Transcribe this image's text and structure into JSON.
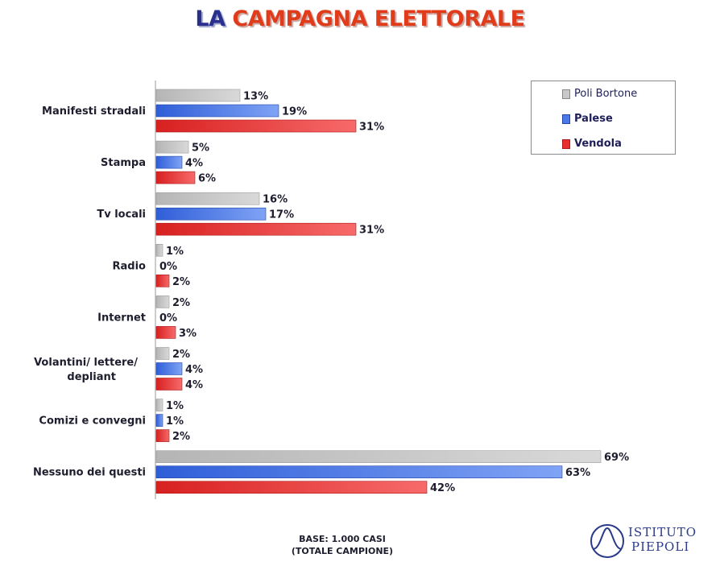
{
  "title": {
    "part1": "LA",
    "part2": "CAMPAGNA ELETTORALE"
  },
  "footer": {
    "line1": "BASE: 1.000 CASI",
    "line2": "(TOTALE CAMPIONE)"
  },
  "logo": {
    "line1": "ISTITUTO",
    "line2": "PIEPOLI"
  },
  "chart_data": {
    "type": "bar",
    "orientation": "horizontal",
    "categories": [
      "Manifesti stradali",
      "Stampa",
      "Tv locali",
      "Radio",
      "Internet",
      "Volantini/ lettere/ depliant",
      "Comizi e convegni",
      "Nessuno dei questi"
    ],
    "series": [
      {
        "name": "Poli Bortone",
        "color": "#c8c8c8",
        "values": [
          13,
          5,
          16,
          1,
          2,
          2,
          1,
          69
        ]
      },
      {
        "name": "Palese",
        "color": "#4a78e8",
        "values": [
          19,
          4,
          17,
          0,
          0,
          4,
          1,
          63
        ]
      },
      {
        "name": "Vendola",
        "color": "#e83030",
        "values": [
          31,
          6,
          31,
          2,
          3,
          4,
          2,
          42
        ]
      }
    ],
    "value_suffix": "%",
    "xlim": [
      0,
      100
    ],
    "grid": false,
    "legend_position": "top-right"
  }
}
